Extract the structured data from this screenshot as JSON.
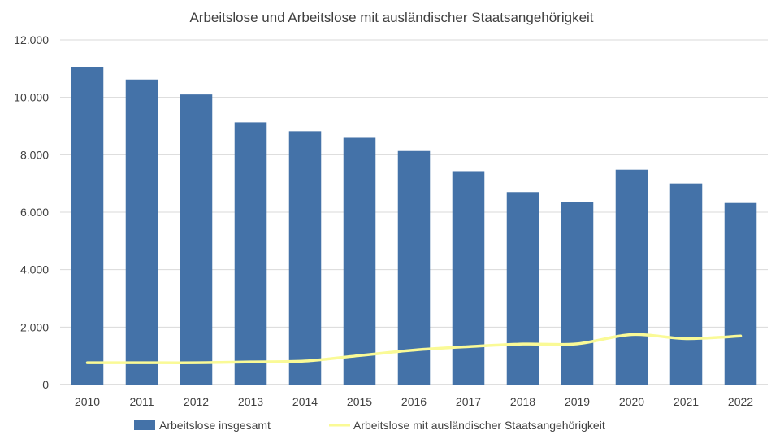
{
  "chart_data": {
    "type": "bar",
    "title": "Arbeitslose und Arbeitslose mit ausländischer Staatsangehörigkeit",
    "categories": [
      "2010",
      "2011",
      "2012",
      "2013",
      "2014",
      "2015",
      "2016",
      "2017",
      "2018",
      "2019",
      "2020",
      "2021",
      "2022"
    ],
    "series": [
      {
        "name": "Arbeitslose insgesamt",
        "type": "bar",
        "color": "#4472a8",
        "values": [
          11050,
          10620,
          10100,
          9130,
          8820,
          8590,
          8130,
          7430,
          6700,
          6350,
          7480,
          7000,
          6320
        ]
      },
      {
        "name": "Arbeitslose mit ausländischer Staatsangehörigkeit",
        "type": "line",
        "color": "#fafa96",
        "values": [
          760,
          760,
          760,
          790,
          820,
          1010,
          1200,
          1320,
          1410,
          1420,
          1740,
          1600,
          1690
        ]
      }
    ],
    "y_ticks": [
      "0",
      "2.000",
      "4.000",
      "6.000",
      "8.000",
      "10.000",
      "12.000"
    ],
    "ylim": [
      0,
      12000
    ],
    "grid": true,
    "legend_position": "bottom"
  }
}
